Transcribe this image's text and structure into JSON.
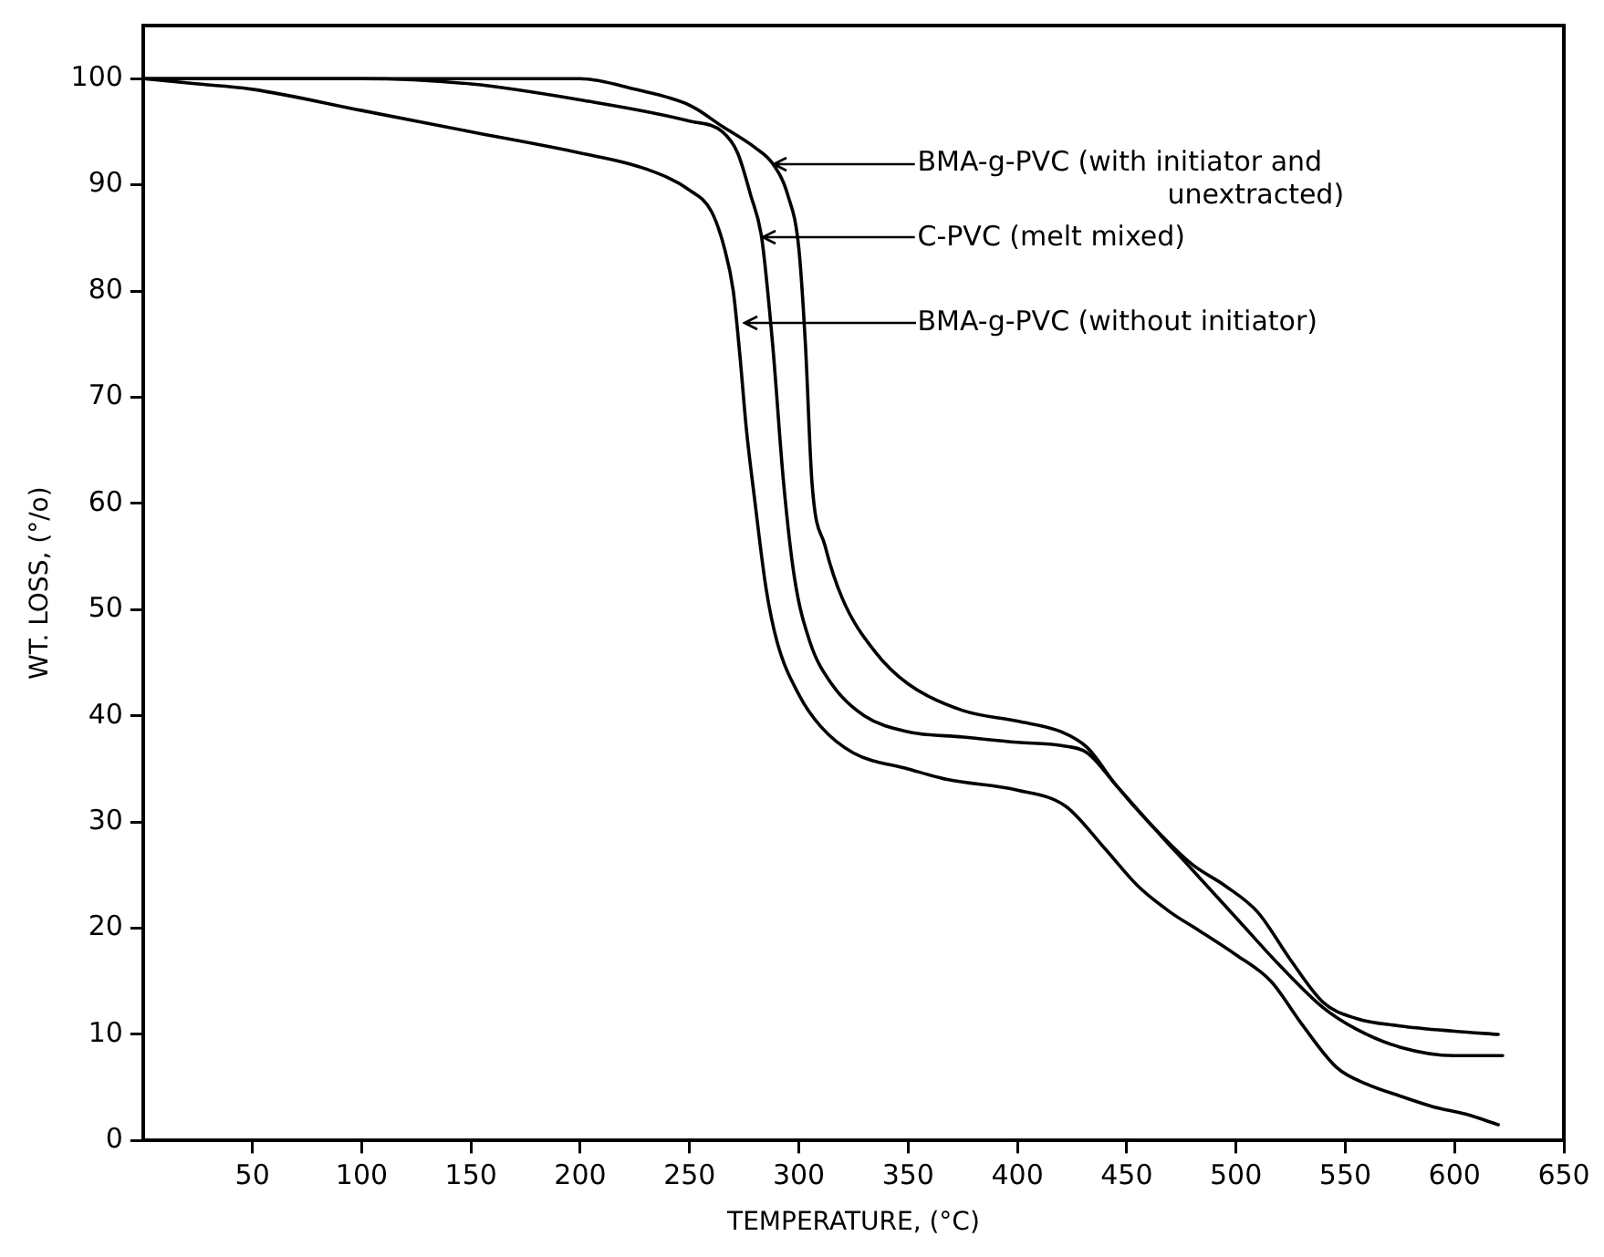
{
  "chart_data": {
    "type": "line",
    "xlabel": "TEMPERATURE, (°C)",
    "ylabel": "WT. LOSS, (°/o)",
    "xlim": [
      0,
      650
    ],
    "xticks": [
      50,
      100,
      150,
      200,
      250,
      300,
      350,
      400,
      450,
      500,
      550,
      600,
      650
    ],
    "ylim": [
      0,
      105
    ],
    "yticks": [
      0,
      10,
      20,
      30,
      40,
      50,
      60,
      70,
      80,
      90,
      100
    ],
    "grid": false,
    "legend": false,
    "marker": "none",
    "line_style": "solid",
    "series": [
      {
        "color": "#000000",
        "x": [
          0,
          50,
          100,
          150,
          200,
          225,
          250,
          265,
          280,
          288,
          295,
          300,
          303,
          306,
          312,
          320,
          335,
          350,
          375,
          400,
          420,
          432,
          445,
          460,
          480,
          495,
          510,
          525,
          540,
          555,
          575,
          600,
          620
        ],
        "values": [
          100,
          100,
          100,
          100,
          100,
          99,
          97.5,
          95.5,
          93.5,
          92,
          89,
          84,
          75,
          62,
          56,
          51,
          46,
          43,
          40.5,
          39.5,
          38.5,
          37,
          33.5,
          30,
          26,
          24,
          21.5,
          17,
          13,
          11.5,
          10.8,
          10.3,
          10
        ]
      },
      {
        "color": "#000000",
        "x": [
          0,
          50,
          100,
          150,
          200,
          250,
          265,
          272,
          278,
          283,
          288,
          293,
          298,
          305,
          315,
          330,
          350,
          375,
          400,
          420,
          432,
          445,
          460,
          480,
          500,
          520,
          540,
          555,
          575,
          600,
          622
        ],
        "values": [
          100,
          100,
          100,
          99.5,
          98,
          96,
          95,
          93,
          89,
          85,
          75,
          62,
          53,
          47,
          43,
          40,
          38.5,
          38,
          37.5,
          37.2,
          36.5,
          33.5,
          30,
          25.5,
          21,
          16.5,
          12.5,
          10.5,
          8.8,
          8,
          8
        ]
      },
      {
        "color": "#000000",
        "x": [
          0,
          25,
          50,
          100,
          150,
          200,
          230,
          250,
          260,
          266,
          270,
          273,
          276,
          280,
          285,
          290,
          300,
          310,
          325,
          350,
          368,
          400,
          422,
          440,
          455,
          470,
          483,
          500,
          516,
          530,
          546,
          560,
          575,
          590,
          605,
          620
        ],
        "values": [
          100,
          99.5,
          99,
          97,
          95,
          93,
          91.5,
          89.5,
          87.5,
          84,
          80,
          74,
          67,
          60,
          52,
          47,
          42,
          39,
          36.5,
          35,
          34,
          33,
          31.5,
          27.5,
          24,
          21.5,
          19.8,
          17.5,
          15,
          11,
          6.9,
          5.3,
          4.2,
          3.2,
          2.5,
          1.5
        ]
      }
    ],
    "annotations": [
      {
        "text": "BMA-g-PVC (with initiator and unextracted)",
        "x": 288,
        "y": 92
      },
      {
        "text": "C-PVC (melt mixed)",
        "x": 283,
        "y": 85
      },
      {
        "text": "BMA-g-PVC (without initiator)",
        "x": 274,
        "y": 77
      }
    ]
  }
}
